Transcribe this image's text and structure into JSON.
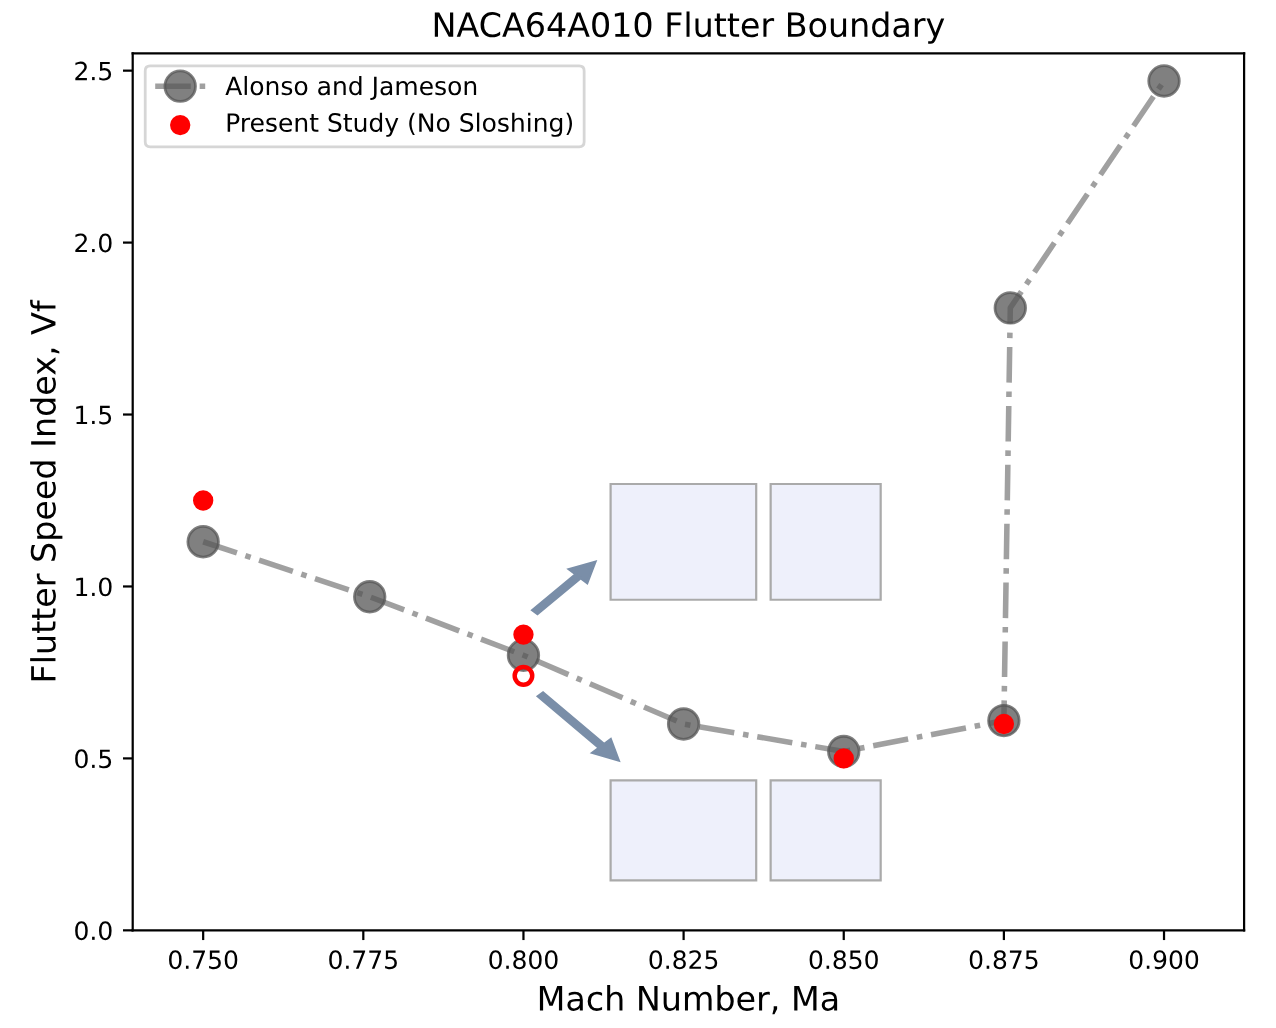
{
  "chart_data": {
    "type": "scatter",
    "title": "NACA64A010 Flutter Boundary",
    "xlabel": "Mach Number, Ma",
    "ylabel": "Flutter Speed Index, Vf",
    "xlim": [
      0.739,
      0.9125
    ],
    "ylim": [
      0,
      2.55
    ],
    "xticks": [
      {
        "value": 0.75,
        "label": "0.750"
      },
      {
        "value": 0.775,
        "label": "0.775"
      },
      {
        "value": 0.8,
        "label": "0.800"
      },
      {
        "value": 0.825,
        "label": "0.825"
      },
      {
        "value": 0.85,
        "label": "0.850"
      },
      {
        "value": 0.875,
        "label": "0.875"
      },
      {
        "value": 0.9,
        "label": "0.900"
      }
    ],
    "yticks": [
      {
        "value": 0,
        "label": "0.0"
      },
      {
        "value": 0.5,
        "label": "0.5"
      },
      {
        "value": 1,
        "label": "1.0"
      },
      {
        "value": 1.5,
        "label": "1.5"
      },
      {
        "value": 2,
        "label": "2.0"
      },
      {
        "value": 2.5,
        "label": "2.5"
      }
    ],
    "legend": "top left",
    "grid": false,
    "series": [
      {
        "name": "Alonso and Jameson",
        "type": "line",
        "color": "#808080",
        "marker": "circle",
        "line_style": "dashdot",
        "x": [
          0.75,
          0.776,
          0.8,
          0.825,
          0.85,
          0.875,
          0.876,
          0.9
        ],
        "values": [
          1.13,
          0.97,
          0.8,
          0.6,
          0.52,
          0.61,
          1.81,
          2.47
        ]
      },
      {
        "name": "Present Study (No Sloshing)",
        "color": "#ff0000",
        "marker": "circle",
        "x": [
          0.75,
          0.8,
          0.85,
          0.875
        ],
        "values": [
          1.25,
          0.86,
          0.5,
          0.6
        ]
      },
      {
        "color": "#ff0000",
        "marker": "circle",
        "x": [
          0.8
        ],
        "values": [
          0.74
        ]
      }
    ]
  }
}
